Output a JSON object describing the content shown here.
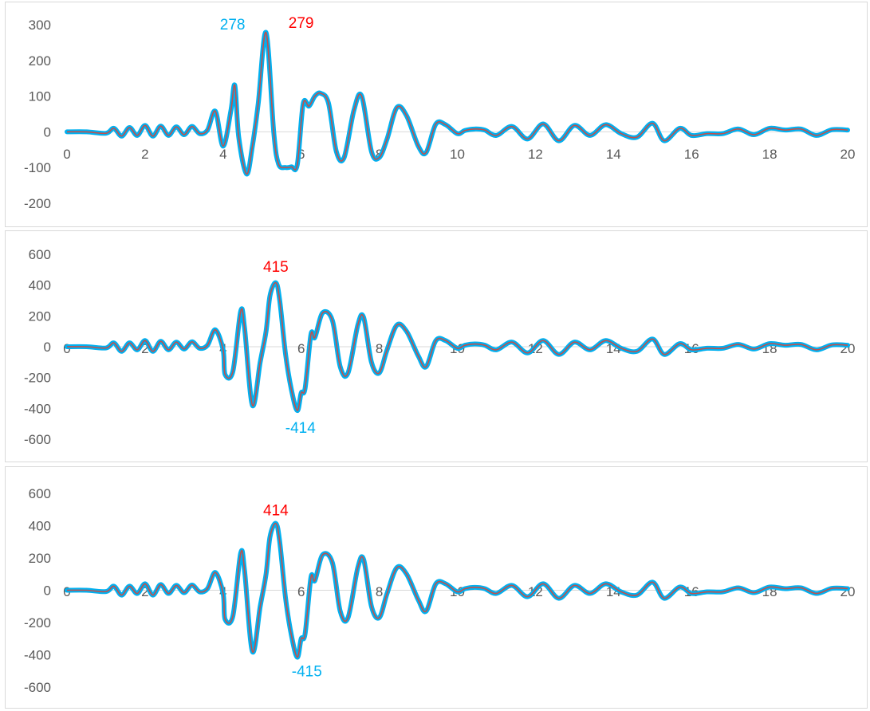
{
  "chart_data": [
    {
      "type": "line",
      "xlim": [
        0,
        20
      ],
      "ylim": [
        -200,
        300
      ],
      "xticks": [
        "0",
        "2",
        "4",
        "6",
        "8",
        "10",
        "12",
        "14",
        "16",
        "18",
        "20"
      ],
      "yticks": [
        "300",
        "200",
        "100",
        "0",
        "-100",
        "-200"
      ],
      "grid": false,
      "legend": "none",
      "series": [
        {
          "color": "#00b0f0",
          "x": [
            0,
            0.5,
            1,
            1.2,
            1.4,
            1.6,
            1.8,
            2,
            2.2,
            2.4,
            2.6,
            2.8,
            3,
            3.2,
            3.4,
            3.6,
            3.8,
            4,
            4.2,
            4.3,
            4.4,
            4.6,
            4.75,
            4.9,
            5.1,
            5.3,
            5.42,
            5.6,
            5.75,
            5.9,
            6.05,
            6.2,
            6.35,
            6.5,
            6.7,
            6.9,
            7.1,
            7.35,
            7.55,
            7.8,
            8,
            8.2,
            8.45,
            8.7,
            9.0,
            9.2,
            9.45,
            9.7,
            10.0,
            10.2,
            10.45,
            10.7,
            11,
            11.4,
            11.8,
            12.2,
            12.6,
            13.0,
            13.4,
            13.8,
            14.2,
            14.6,
            15.0,
            15.3,
            15.7,
            16.0,
            16.4,
            16.8,
            17.2,
            17.6,
            18.0,
            18.4,
            18.8,
            19.2,
            19.6,
            20
          ],
          "y": [
            0,
            0,
            -4,
            10,
            -12,
            12,
            -10,
            18,
            -12,
            16,
            -10,
            14,
            -8,
            15,
            -5,
            5,
            58,
            -40,
            60,
            130,
            -15,
            -118,
            -40,
            80,
            278,
            -5,
            -90,
            -100,
            -98,
            -92,
            78,
            72,
            100,
            108,
            80,
            -55,
            -72,
            60,
            100,
            -55,
            -72,
            -20,
            68,
            45,
            -40,
            -58,
            22,
            20,
            -5,
            4,
            8,
            5,
            -10,
            15,
            -20,
            22,
            -25,
            18,
            -10,
            20,
            -5,
            -15,
            24,
            -25,
            10,
            -10,
            -5,
            -5,
            8,
            -8,
            10,
            5,
            8,
            -10,
            6,
            5
          ]
        }
      ],
      "annotations": [
        {
          "text": "278",
          "color": "#00b0f0"
        },
        {
          "text": "279",
          "color": "#ff0000"
        }
      ]
    },
    {
      "type": "line",
      "xlim": [
        0,
        20
      ],
      "ylim": [
        -600,
        600
      ],
      "xticks": [
        "0",
        "2",
        "4",
        "6",
        "8",
        "10",
        "12",
        "14",
        "16",
        "18",
        "20"
      ],
      "yticks": [
        "600",
        "400",
        "200",
        "0",
        "-200",
        "-400",
        "-600"
      ],
      "grid": false,
      "legend": "none",
      "series": [
        {
          "color": "#00b0f0",
          "x": [
            0,
            0.5,
            1,
            1.2,
            1.4,
            1.6,
            1.8,
            2,
            2.2,
            2.4,
            2.6,
            2.8,
            3,
            3.2,
            3.4,
            3.6,
            3.8,
            4,
            4.05,
            4.25,
            4.45,
            4.55,
            4.75,
            4.95,
            5.1,
            5.2,
            5.35,
            5.45,
            5.6,
            5.75,
            5.9,
            6.0,
            6.1,
            6.25,
            6.35,
            6.55,
            6.8,
            7.0,
            7.2,
            7.45,
            7.6,
            7.8,
            8.0,
            8.2,
            8.45,
            8.7,
            9.0,
            9.2,
            9.45,
            9.7,
            10.0,
            10.2,
            10.45,
            10.7,
            11,
            11.4,
            11.8,
            12.2,
            12.6,
            13.0,
            13.4,
            13.8,
            14.2,
            14.6,
            15.0,
            15.3,
            15.7,
            16.0,
            16.4,
            16.8,
            17.2,
            17.6,
            18.0,
            18.4,
            18.8,
            19.2,
            19.6,
            20
          ],
          "y": [
            0,
            0,
            -8,
            25,
            -30,
            25,
            -20,
            40,
            -30,
            35,
            -20,
            30,
            -15,
            32,
            -10,
            10,
            110,
            -20,
            -180,
            -160,
            230,
            120,
            -380,
            -100,
            100,
            330,
            415,
            300,
            -50,
            -280,
            -414,
            -300,
            -270,
            80,
            60,
            220,
            170,
            -130,
            -170,
            140,
            190,
            -100,
            -170,
            -20,
            140,
            100,
            -60,
            -130,
            40,
            40,
            -10,
            10,
            18,
            10,
            -20,
            30,
            -40,
            40,
            -50,
            30,
            -20,
            40,
            -10,
            -30,
            50,
            -50,
            20,
            -20,
            -10,
            -10,
            15,
            -15,
            20,
            10,
            15,
            -20,
            12,
            10
          ]
        }
      ],
      "annotations": [
        {
          "text": "415",
          "color": "#ff0000"
        },
        {
          "text": "-414",
          "color": "#00b0f0"
        }
      ]
    },
    {
      "type": "line",
      "xlim": [
        0,
        20
      ],
      "ylim": [
        -600,
        600
      ],
      "xticks": [
        "0",
        "2",
        "4",
        "6",
        "8",
        "10",
        "12",
        "14",
        "16",
        "18",
        "20"
      ],
      "yticks": [
        "600",
        "400",
        "200",
        "0",
        "-200",
        "-400",
        "-600"
      ],
      "grid": false,
      "legend": "none",
      "series": [
        {
          "color": "#00b0f0",
          "x": [
            0,
            0.5,
            1,
            1.2,
            1.4,
            1.6,
            1.8,
            2,
            2.2,
            2.4,
            2.6,
            2.8,
            3,
            3.2,
            3.4,
            3.6,
            3.8,
            4,
            4.05,
            4.25,
            4.45,
            4.55,
            4.75,
            4.95,
            5.1,
            5.2,
            5.35,
            5.45,
            5.6,
            5.75,
            5.9,
            6.0,
            6.1,
            6.25,
            6.35,
            6.55,
            6.8,
            7.0,
            7.2,
            7.45,
            7.6,
            7.8,
            8.0,
            8.2,
            8.45,
            8.7,
            9.0,
            9.2,
            9.45,
            9.7,
            10.0,
            10.2,
            10.45,
            10.7,
            11,
            11.4,
            11.8,
            12.2,
            12.6,
            13.0,
            13.4,
            13.8,
            14.2,
            14.6,
            15.0,
            15.3,
            15.7,
            16.0,
            16.4,
            16.8,
            17.2,
            17.6,
            18.0,
            18.4,
            18.8,
            19.2,
            19.6,
            20
          ],
          "y": [
            0,
            0,
            -8,
            25,
            -30,
            25,
            -20,
            40,
            -30,
            35,
            -20,
            30,
            -15,
            32,
            -10,
            10,
            110,
            -20,
            -180,
            -160,
            230,
            120,
            -380,
            -100,
            100,
            330,
            414,
            300,
            -50,
            -280,
            -415,
            -300,
            -270,
            80,
            60,
            220,
            170,
            -130,
            -170,
            140,
            190,
            -100,
            -170,
            -20,
            140,
            100,
            -60,
            -130,
            40,
            40,
            -10,
            10,
            18,
            10,
            -20,
            30,
            -40,
            40,
            -50,
            30,
            -20,
            40,
            -10,
            -30,
            50,
            -50,
            20,
            -20,
            -10,
            -10,
            15,
            -15,
            20,
            10,
            15,
            -20,
            12,
            10
          ]
        }
      ],
      "annotations": [
        {
          "text": "414",
          "color": "#ff0000"
        },
        {
          "text": "-415",
          "color": "#00b0f0"
        }
      ]
    }
  ]
}
